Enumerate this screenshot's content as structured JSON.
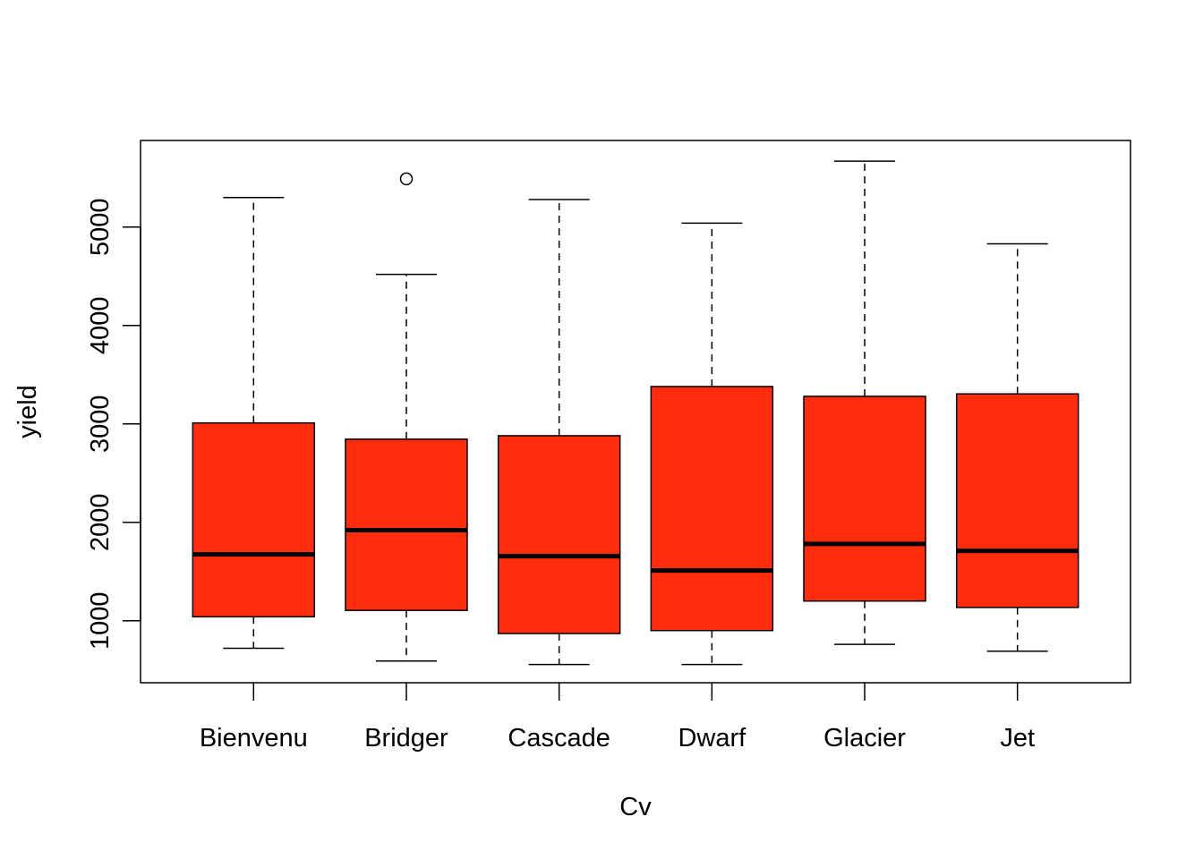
{
  "chart_data": {
    "type": "boxplot",
    "title": "",
    "xlabel": "Cv",
    "ylabel": "yield",
    "categories": [
      "Bienvenu",
      "Bridger",
      "Cascade",
      "Dwarf",
      "Glacier",
      "Jet"
    ],
    "boxes": [
      {
        "category": "Bienvenu",
        "whisker_low": 720,
        "q1": 1040,
        "median": 1675,
        "q3": 3010,
        "whisker_high": 5300,
        "outliers": []
      },
      {
        "category": "Bridger",
        "whisker_low": 590,
        "q1": 1105,
        "median": 1920,
        "q3": 2845,
        "whisker_high": 4520,
        "outliers": [
          5490
        ]
      },
      {
        "category": "Cascade",
        "whisker_low": 555,
        "q1": 870,
        "median": 1655,
        "q3": 2880,
        "whisker_high": 5280,
        "outliers": []
      },
      {
        "category": "Dwarf",
        "whisker_low": 555,
        "q1": 900,
        "median": 1510,
        "q3": 3380,
        "whisker_high": 5040,
        "outliers": []
      },
      {
        "category": "Glacier",
        "whisker_low": 760,
        "q1": 1200,
        "median": 1780,
        "q3": 3280,
        "whisker_high": 5670,
        "outliers": []
      },
      {
        "category": "Jet",
        "whisker_low": 690,
        "q1": 1135,
        "median": 1710,
        "q3": 3305,
        "whisker_high": 4830,
        "outliers": []
      }
    ],
    "ylim": [
      370,
      5880
    ],
    "yticks": [
      "1000",
      "2000",
      "3000",
      "4000",
      "5000"
    ],
    "grid": false,
    "box_color": "#ff2d0b",
    "line_color": "#000000"
  }
}
